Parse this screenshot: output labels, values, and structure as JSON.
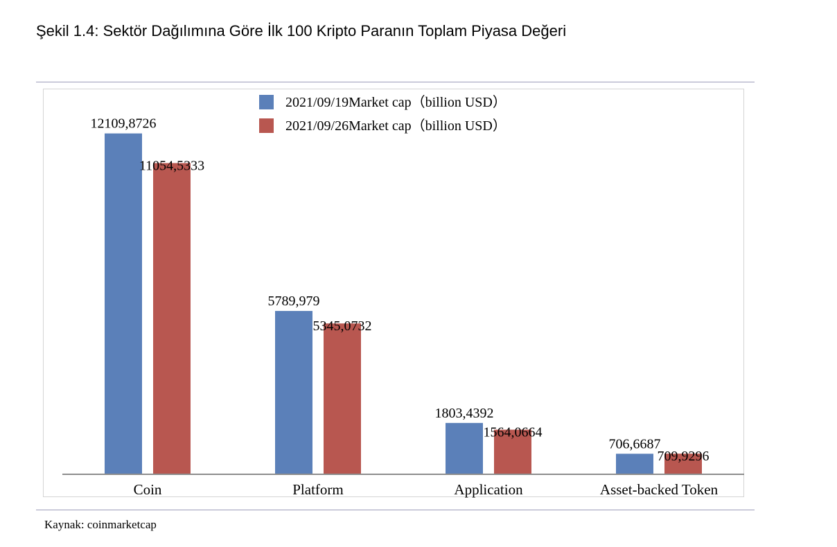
{
  "title": "Şekil 1.4: Sektör Dağılımına Göre İlk 100 Kripto Paranın Toplam Piyasa Değeri",
  "source": "Kaynak: coinmarketcap",
  "chart_data": {
    "type": "bar",
    "categories": [
      "Coin",
      "Platform",
      "Application",
      "Asset-backed Token"
    ],
    "series": [
      {
        "name": "2021/09/19Market cap（billion USD）",
        "values": [
          12109.8726,
          5789.979,
          1803.4392,
          706.6687
        ],
        "labels": [
          "12109,8726",
          "5789,979",
          "1803,4392",
          "706,6687"
        ],
        "color": "#5b80b9"
      },
      {
        "name": "2021/09/26Market cap（billion USD）",
        "values": [
          11054.5333,
          5345.0732,
          1564.0664,
          709.9296
        ],
        "labels": [
          "11054,5333",
          "5345,0732",
          "1564,0664",
          "709,9296"
        ],
        "color": "#b85750"
      }
    ],
    "ylim": [
      0,
      14000
    ],
    "grid": false,
    "legend": "top-center",
    "xlabel": "",
    "ylabel": ""
  }
}
